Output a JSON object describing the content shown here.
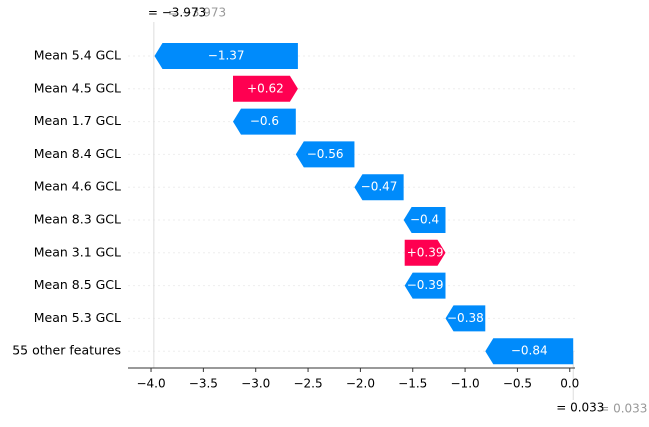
{
  "chart_data": {
    "type": "waterfall",
    "categories": [
      "Mean 5.4 GCL",
      "Mean 4.5 GCL",
      "Mean 1.7 GCL",
      "Mean 8.4 GCL",
      "Mean 4.6 GCL",
      "Mean 8.3 GCL",
      "Mean 3.1 GCL",
      "Mean 8.5 GCL",
      "Mean 5.3 GCL",
      "55 other features"
    ],
    "values": [
      -1.37,
      0.62,
      -0.6,
      -0.56,
      -0.47,
      -0.4,
      0.39,
      -0.39,
      -0.38,
      -0.84
    ],
    "value_labels": [
      "−1.37",
      "+0.62",
      "−0.6",
      "−0.56",
      "−0.47",
      "−0.4",
      "+0.39",
      "−0.39",
      "−0.38",
      "−0.84"
    ],
    "colors": {
      "positive": "#ff0051",
      "negative": "#008bfb"
    },
    "fx": {
      "value": -3.973,
      "label": "= −3.973"
    },
    "base": {
      "value": 0.033,
      "label": "= 0.033"
    },
    "xlim": [
      -4.22,
      0.05
    ],
    "xticks": [
      {
        "value": -4.0,
        "label": "−4.0"
      },
      {
        "value": -3.5,
        "label": "−3.5"
      },
      {
        "value": -3.0,
        "label": "−3.0"
      },
      {
        "value": -2.5,
        "label": "−2.5"
      },
      {
        "value": -2.0,
        "label": "−2.0"
      },
      {
        "value": -1.5,
        "label": "−1.5"
      },
      {
        "value": -1.0,
        "label": "−1.0"
      },
      {
        "value": -0.5,
        "label": "−0.5"
      },
      {
        "value": 0.0,
        "label": "0.0"
      }
    ]
  }
}
